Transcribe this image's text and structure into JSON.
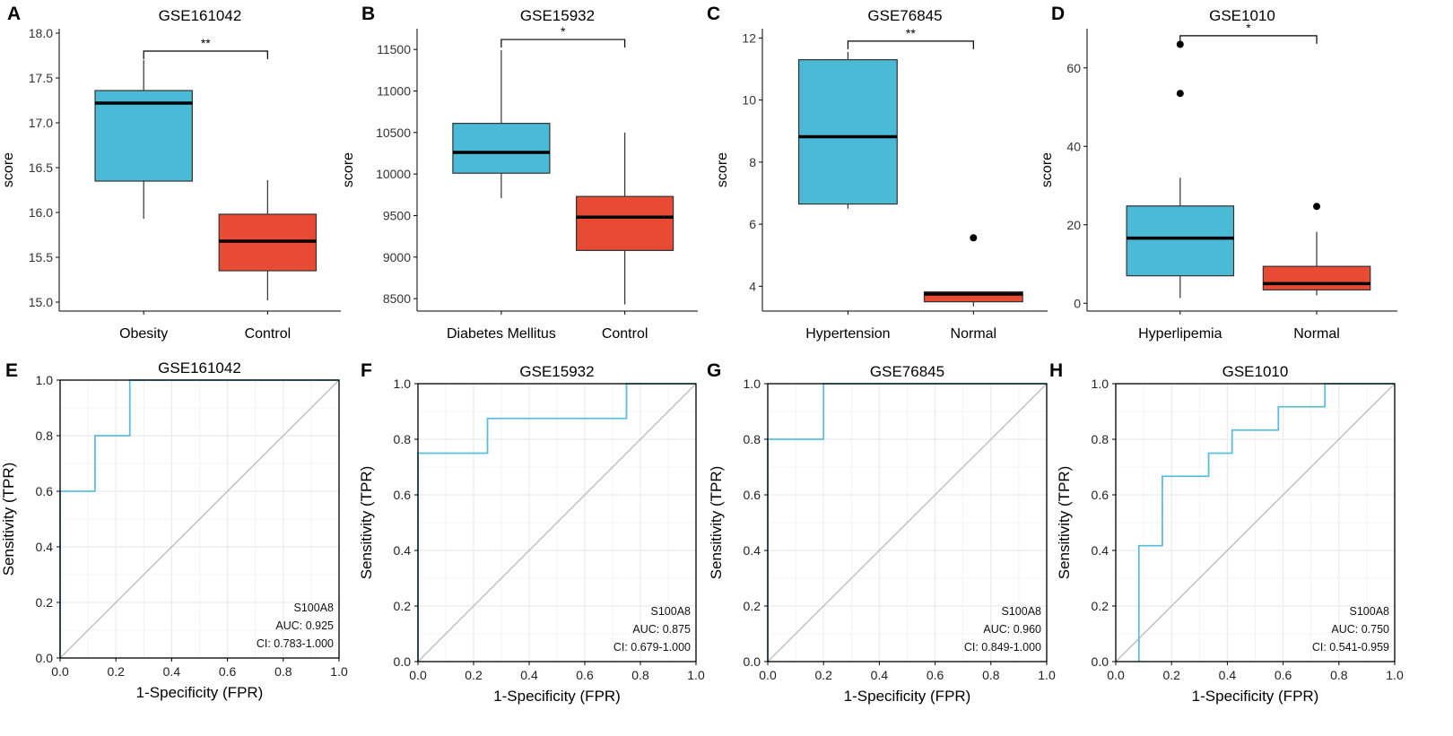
{
  "colors": {
    "case_fill": "#4BBAD7",
    "control_fill": "#E84A33",
    "roc_line": "#5BBEDB",
    "diagonal": "#BEBEBE",
    "grid": "#EBEBEB",
    "axis": "#000000"
  },
  "chart_data": [
    {
      "panel": "A",
      "type": "box",
      "title": "GSE161042",
      "ylabel": "score",
      "ylim": [
        14.9,
        18.05
      ],
      "yticks": [
        15.0,
        15.5,
        16.0,
        16.5,
        17.0,
        17.5,
        18.0
      ],
      "ytick_labels": [
        "15.0",
        "15.5",
        "16.0",
        "16.5",
        "17.0",
        "17.5",
        "18.0"
      ],
      "categories": [
        "Obesity",
        "Control"
      ],
      "boxes": [
        {
          "name": "Obesity",
          "whisker_low": 15.93,
          "q1": 16.35,
          "median": 17.22,
          "q3": 17.36,
          "whisker_high": 17.7,
          "outliers": []
        },
        {
          "name": "Control",
          "whisker_low": 15.02,
          "q1": 15.35,
          "median": 15.68,
          "q3": 15.98,
          "whisker_high": 16.36,
          "outliers": []
        }
      ],
      "significance": "**",
      "bracket_y": 17.8
    },
    {
      "panel": "B",
      "type": "box",
      "title": "GSE15932",
      "ylabel": "score",
      "ylim": [
        8350,
        11750
      ],
      "yticks": [
        8500,
        9000,
        9500,
        10000,
        10500,
        11000,
        11500
      ],
      "ytick_labels": [
        "8500",
        "9000",
        "9500",
        "10000",
        "10500",
        "11000",
        "11500"
      ],
      "categories": [
        "Diabetes Mellitus",
        "Control"
      ],
      "boxes": [
        {
          "name": "Diabetes Mellitus",
          "whisker_low": 9710,
          "q1": 10010,
          "median": 10260,
          "q3": 10610,
          "whisker_high": 11490,
          "outliers": []
        },
        {
          "name": "Control",
          "whisker_low": 8430,
          "q1": 9080,
          "median": 9480,
          "q3": 9730,
          "whisker_high": 10500,
          "outliers": []
        }
      ],
      "significance": "*",
      "bracket_y": 11620
    },
    {
      "panel": "C",
      "type": "box",
      "title": "GSE76845",
      "ylabel": "score",
      "ylim": [
        3.2,
        12.3
      ],
      "yticks": [
        4,
        6,
        8,
        10,
        12
      ],
      "ytick_labels": [
        "4",
        "6",
        "8",
        "10",
        "12"
      ],
      "categories": [
        "Hypertension",
        "Normal"
      ],
      "boxes": [
        {
          "name": "Hypertension",
          "whisker_low": 6.5,
          "q1": 6.65,
          "median": 8.82,
          "q3": 11.3,
          "whisker_high": 11.55,
          "outliers": []
        },
        {
          "name": "Normal",
          "whisker_low": 3.35,
          "q1": 3.5,
          "median": 3.75,
          "q3": 3.82,
          "whisker_high": 3.82,
          "outliers": [
            5.56
          ]
        }
      ],
      "significance": "**",
      "bracket_y": 11.9
    },
    {
      "panel": "D",
      "type": "box",
      "title": "GSE1010",
      "ylabel": "score",
      "ylim": [
        -2,
        70
      ],
      "yticks": [
        0,
        20,
        40,
        60
      ],
      "ytick_labels": [
        "0",
        "20",
        "40",
        "60"
      ],
      "categories": [
        "Hyperlipemia",
        "Normal"
      ],
      "boxes": [
        {
          "name": "Hyperlipemia",
          "whisker_low": 1.3,
          "q1": 7.0,
          "median": 16.6,
          "q3": 24.8,
          "whisker_high": 32.0,
          "outliers": [
            53.5,
            66.0
          ]
        },
        {
          "name": "Normal",
          "whisker_low": 2.0,
          "q1": 3.4,
          "median": 5.0,
          "q3": 9.4,
          "whisker_high": 18.2,
          "outliers": [
            24.7
          ]
        }
      ],
      "significance": "*",
      "bracket_y": 68.2
    },
    {
      "panel": "E",
      "type": "line",
      "title": "GSE161042",
      "xlabel": "1-Specificity (FPR)",
      "ylabel": "Sensitivity (TPR)",
      "xlim": [
        0,
        1
      ],
      "ylim": [
        0,
        1
      ],
      "xtick_labels": [
        "0.0",
        "0.2",
        "0.4",
        "0.6",
        "0.8",
        "1.0"
      ],
      "ytick_labels": [
        "0.0",
        "0.2",
        "0.4",
        "0.6",
        "0.8",
        "1.0"
      ],
      "series": [
        {
          "name": "S100A8",
          "x": [
            0,
            0,
            0.125,
            0.125,
            0.25,
            0.25,
            1.0
          ],
          "y": [
            0,
            0.6,
            0.6,
            0.8,
            0.8,
            1.0,
            1.0
          ]
        }
      ],
      "legend_lines": [
        "S100A8",
        "AUC: 0.925",
        "CI: 0.783-1.000"
      ]
    },
    {
      "panel": "F",
      "type": "line",
      "title": "GSE15932",
      "xlabel": "1-Specificity (FPR)",
      "ylabel": "Sensitivity (TPR)",
      "xlim": [
        0,
        1
      ],
      "ylim": [
        0,
        1
      ],
      "xtick_labels": [
        "0.0",
        "0.2",
        "0.4",
        "0.6",
        "0.8",
        "1.0"
      ],
      "ytick_labels": [
        "0.0",
        "0.2",
        "0.4",
        "0.6",
        "0.8",
        "1.0"
      ],
      "series": [
        {
          "name": "S100A8",
          "x": [
            0,
            0,
            0.25,
            0.25,
            0.75,
            0.75,
            1.0
          ],
          "y": [
            0,
            0.75,
            0.75,
            0.875,
            0.875,
            1.0,
            1.0
          ]
        }
      ],
      "legend_lines": [
        "S100A8",
        "AUC: 0.875",
        "CI: 0.679-1.000"
      ]
    },
    {
      "panel": "G",
      "type": "line",
      "title": "GSE76845",
      "xlabel": "1-Specificity (FPR)",
      "ylabel": "Sensitivity (TPR)",
      "xlim": [
        0,
        1
      ],
      "ylim": [
        0,
        1
      ],
      "xtick_labels": [
        "0.0",
        "0.2",
        "0.4",
        "0.6",
        "0.8",
        "1.0"
      ],
      "ytick_labels": [
        "0.0",
        "0.2",
        "0.4",
        "0.6",
        "0.8",
        "1.0"
      ],
      "series": [
        {
          "name": "S100A8",
          "x": [
            0,
            0,
            0.2,
            0.2,
            1.0
          ],
          "y": [
            0,
            0.8,
            0.8,
            1.0,
            1.0
          ]
        }
      ],
      "legend_lines": [
        "S100A8",
        "AUC: 0.960",
        "CI: 0.849-1.000"
      ]
    },
    {
      "panel": "H",
      "type": "line",
      "title": "GSE1010",
      "xlabel": "1-Specificity (FPR)",
      "ylabel": "Sensitivity (TPR)",
      "xlim": [
        0,
        1
      ],
      "ylim": [
        0,
        1
      ],
      "xtick_labels": [
        "0.0",
        "0.2",
        "0.4",
        "0.6",
        "0.8",
        "1.0"
      ],
      "ytick_labels": [
        "0.0",
        "0.2",
        "0.4",
        "0.6",
        "0.8",
        "1.0"
      ],
      "series": [
        {
          "name": "S100A8",
          "x": [
            0.083,
            0.083,
            0.167,
            0.167,
            0.333,
            0.333,
            0.417,
            0.417,
            0.583,
            0.583,
            0.75,
            0.75,
            1.0
          ],
          "y": [
            0,
            0.417,
            0.417,
            0.667,
            0.667,
            0.75,
            0.75,
            0.833,
            0.833,
            0.917,
            0.917,
            1.0,
            1.0
          ]
        }
      ],
      "legend_lines": [
        "S100A8",
        "AUC: 0.750",
        "CI: 0.541-0.959"
      ]
    }
  ]
}
